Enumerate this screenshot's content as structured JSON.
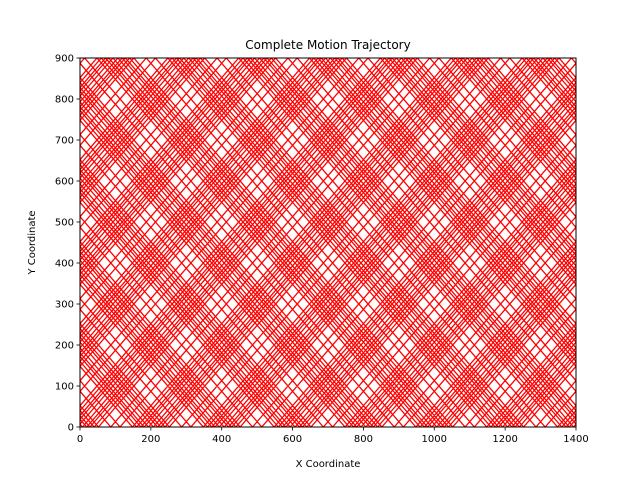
{
  "chart_data": {
    "type": "line",
    "title": "Complete Motion Trajectory",
    "xlabel": "X Coordinate",
    "ylabel": "Y Coordinate",
    "xlim": [
      0,
      1400
    ],
    "ylim": [
      0,
      900
    ],
    "xticks": [
      0,
      200,
      400,
      600,
      800,
      1000,
      1200,
      1400
    ],
    "yticks": [
      0,
      100,
      200,
      300,
      400,
      500,
      600,
      700,
      800,
      900
    ],
    "grid": false,
    "legend": "none",
    "line_color": "#ff0000",
    "series": [
      {
        "description_free_values": true,
        "trajectory": {
          "start": [
            0,
            40
          ],
          "speed": 1,
          "direction": [
            1,
            1
          ],
          "bounces_in": [
            0,
            0,
            1400,
            900
          ],
          "passes": [
            {
              "offset": [
                0,
                0
              ]
            },
            {
              "offset": [
                12,
                0
              ]
            },
            {
              "offset": [
                0,
                12
              ]
            },
            {
              "offset": [
                47,
                0
              ]
            },
            {
              "offset": [
                0,
                47
              ]
            },
            {
              "offset": [
                59,
                0
              ]
            }
          ]
        }
      }
    ]
  }
}
